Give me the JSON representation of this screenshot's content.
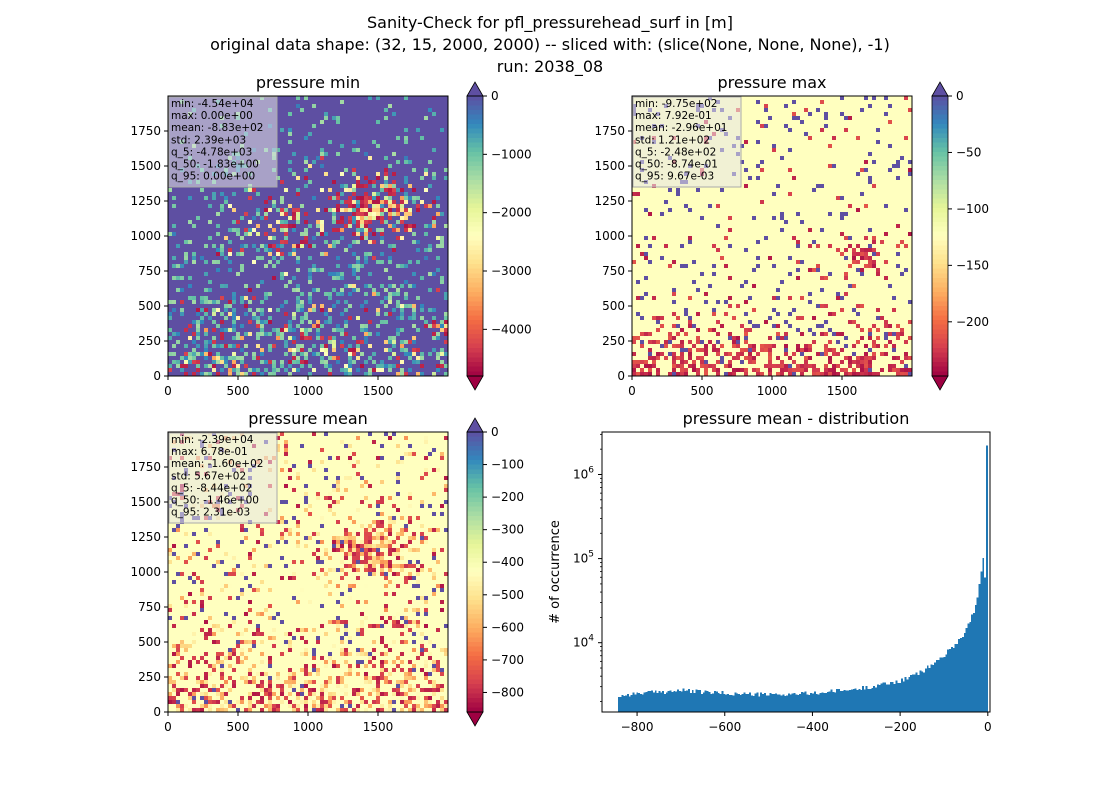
{
  "figure": {
    "title_lines": [
      "Sanity-Check for pfl_pressurehead_surf in [m]",
      "original data shape: (32, 15, 2000, 2000) -- sliced with: (slice(None, None, None), -1)",
      "run: 2038_08"
    ]
  },
  "chart_data": [
    {
      "type": "heatmap",
      "title": "pressure min",
      "xlim": [
        0,
        2000
      ],
      "ylim": [
        0,
        2000
      ],
      "xticks": [
        0,
        500,
        1000,
        1500
      ],
      "yticks": [
        0,
        250,
        500,
        750,
        1000,
        1250,
        1500,
        1750
      ],
      "colormap": "Spectral",
      "colorbar": {
        "vmin": -4800,
        "vmax": 0,
        "ticks": [
          0,
          -1000,
          -2000,
          -3000,
          -4000
        ],
        "extend": "both"
      },
      "stats": [
        "min: -4.54e+04",
        "max: 0.00e+00",
        "mean: -8.83e+02",
        "std: 2.39e+03",
        "q_5: -4.78e+03",
        "q_50: -1.83e+00",
        "q_95: 0.00e+00"
      ]
    },
    {
      "type": "heatmap",
      "title": "pressure max",
      "xlim": [
        0,
        2000
      ],
      "ylim": [
        0,
        2000
      ],
      "xticks": [
        0,
        500,
        1000,
        1500
      ],
      "yticks": [
        0,
        250,
        500,
        750,
        1000,
        1250,
        1500,
        1750
      ],
      "colormap": "Spectral",
      "colorbar": {
        "vmin": -248,
        "vmax": 0,
        "ticks": [
          0,
          -50,
          -100,
          -150,
          -200
        ],
        "extend": "both"
      },
      "stats": [
        "min: -9.75e+02",
        "max: 7.92e-01",
        "mean: -2.96e+01",
        "std: 1.21e+02",
        "q_5: -2.48e+02",
        "q_50: -8.74e-01",
        "q_95: 9.67e-03"
      ]
    },
    {
      "type": "heatmap",
      "title": "pressure mean",
      "xlim": [
        0,
        2000
      ],
      "ylim": [
        0,
        2000
      ],
      "xticks": [
        0,
        500,
        1000,
        1500
      ],
      "yticks": [
        0,
        250,
        500,
        750,
        1000,
        1250,
        1500,
        1750
      ],
      "colormap": "Spectral",
      "colorbar": {
        "vmin": -860,
        "vmax": 0,
        "ticks": [
          0,
          -100,
          -200,
          -300,
          -400,
          -500,
          -600,
          -700,
          -800
        ],
        "extend": "both"
      },
      "stats": [
        "min: -2.39e+04",
        "max: 6.78e-01",
        "mean: -1.60e+02",
        "std: 5.67e+02",
        "q_5: -8.44e+02",
        "q_50: -1.46e+00",
        "q_95: 2.31e-03"
      ]
    },
    {
      "type": "bar",
      "title": "pressure mean - distribution",
      "ylabel": "# of occurrence",
      "yscale": "log",
      "xlim": [
        -880,
        5
      ],
      "ylim": [
        1500,
        3200000
      ],
      "xticks": [
        -800,
        -600,
        -400,
        -200,
        0
      ],
      "ytick_labels": [
        "10^4",
        "10^5",
        "10^6"
      ],
      "color": "#1f77b4",
      "bin_range": [
        -844,
        0
      ],
      "n_bins": 200,
      "profile": [
        [
          -844,
          2300
        ],
        [
          -800,
          2500
        ],
        [
          -700,
          2700
        ],
        [
          -600,
          2500
        ],
        [
          -500,
          2400
        ],
        [
          -400,
          2500
        ],
        [
          -300,
          2800
        ],
        [
          -200,
          3500
        ],
        [
          -150,
          4500
        ],
        [
          -100,
          7000
        ],
        [
          -60,
          11500
        ],
        [
          -40,
          18000
        ],
        [
          -25,
          30000
        ],
        [
          -16,
          60000
        ],
        [
          -12,
          118000
        ],
        [
          -10,
          92000
        ],
        [
          -6,
          55000
        ],
        [
          -3,
          55000
        ],
        [
          -2,
          90000
        ],
        [
          0,
          2200000
        ]
      ]
    }
  ]
}
